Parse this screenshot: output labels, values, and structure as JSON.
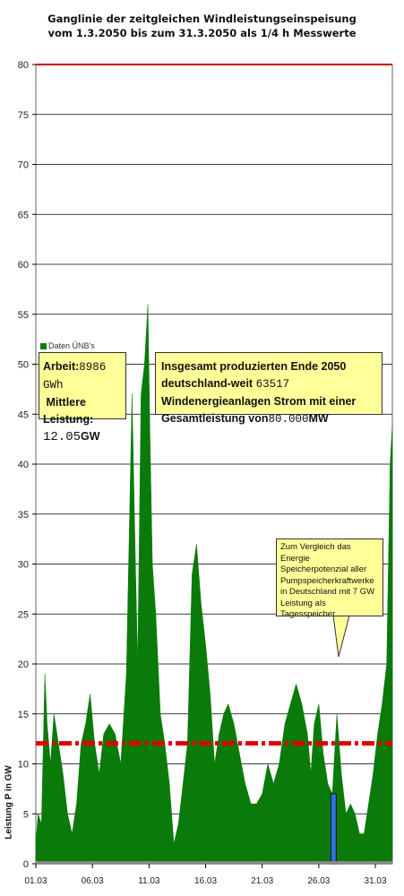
{
  "title_line1": "Ganglinie der zeitgleichen Windleistungseinspeisung",
  "title_line2": "vom 1.3.2050 bis zum 31.3.2050 als 1/4 h Messwerte",
  "legend_text": "Daten ÜNB's",
  "arbeit_box": {
    "arbeit_label": "Arbeit:",
    "arbeit_value": "8986 GWh",
    "leistung_label": "Mittlere Leistung:",
    "leistung_value": "12.05",
    "leistung_unit": "GW"
  },
  "summary_box": {
    "part1": "Insgesamt produzierten Ende 2050 deutschland-weit",
    "count": "63517",
    "part2": "Windenergieanlagen Strom mit einer Gesamtleistung von",
    "capacity": "80.000",
    "unit": "MW"
  },
  "callout_text": "Zum Vergleich das Energie Speicherpotenzial aller Pumpspeicherkraftwerke in Deutschland mit 7 GW Leistung als Tagesspeicher.",
  "colors": {
    "area": "#0a7a0a",
    "capacity_line": "#cc0000",
    "mean_line": "#e00000",
    "storage_bar": "#2f6fe0",
    "box_fill": "#ffff99",
    "grid": "#000000"
  },
  "chart_data": {
    "type": "area",
    "ylabel": "Leistung P in GW",
    "ylim": [
      0,
      80
    ],
    "yticks": [
      0,
      5,
      10,
      15,
      20,
      25,
      30,
      35,
      40,
      45,
      50,
      55,
      60,
      65,
      70,
      75,
      80
    ],
    "xlim": [
      1,
      32.5
    ],
    "xticks": [
      1,
      6,
      11,
      16,
      21,
      26,
      31
    ],
    "xtick_labels": [
      "01.03",
      "06.03",
      "11.03",
      "16.03",
      "21.03",
      "26.03",
      "31.03"
    ],
    "grid": true,
    "legend_position": "top-left",
    "series": [
      {
        "name": "Daten ÜNB's",
        "x": [
          1.0,
          1.2,
          1.5,
          1.8,
          2.0,
          2.3,
          2.6,
          3.0,
          3.4,
          3.8,
          4.2,
          4.6,
          5.0,
          5.4,
          5.8,
          6.2,
          6.6,
          7.0,
          7.5,
          8.0,
          8.5,
          9.0,
          9.5,
          9.8,
          10.0,
          10.3,
          10.6,
          10.9,
          11.1,
          11.3,
          11.6,
          12.0,
          12.4,
          12.8,
          13.2,
          13.6,
          14.0,
          14.4,
          14.8,
          15.2,
          15.6,
          16.0,
          16.4,
          16.8,
          17.2,
          17.6,
          18.0,
          18.5,
          19.0,
          19.5,
          20.0,
          20.5,
          21.0,
          21.5,
          22.0,
          22.5,
          23.0,
          23.5,
          24.0,
          24.5,
          25.0,
          25.3,
          25.6,
          26.0,
          26.4,
          26.8,
          27.2,
          27.6,
          28.0,
          28.4,
          28.8,
          29.2,
          29.6,
          30.0,
          30.4,
          30.8,
          31.2,
          31.6,
          32.0,
          32.3,
          32.5
        ],
        "values": [
          2,
          5,
          4,
          19,
          14,
          10,
          15,
          12,
          9,
          5,
          3,
          6,
          12,
          14,
          17,
          12,
          9,
          13,
          14,
          13,
          10,
          19,
          47,
          30,
          20,
          47,
          50,
          56,
          42,
          30,
          25,
          15,
          12,
          8,
          2,
          4,
          8,
          12,
          29,
          32,
          26,
          22,
          17,
          10,
          13,
          15,
          16,
          14,
          11,
          8,
          6,
          6,
          7,
          10,
          8,
          10,
          14,
          16,
          18,
          16,
          13,
          9,
          14,
          16,
          11,
          8,
          7,
          15,
          9,
          5,
          6,
          5,
          3,
          3,
          6,
          9,
          13,
          16,
          20,
          40,
          44
        ]
      }
    ],
    "reference_lines": [
      {
        "name": "installierte Leistung",
        "y": 80
      },
      {
        "name": "Mittlere Leistung",
        "y": 12.05
      }
    ],
    "bars": [
      {
        "name": "Pumpspeicher",
        "x": 27.3,
        "y": 7
      }
    ]
  }
}
